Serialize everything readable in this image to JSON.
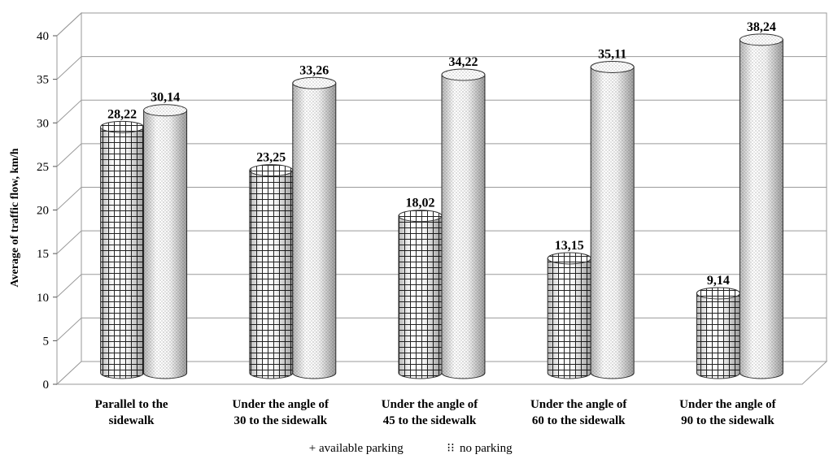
{
  "chart_data": {
    "type": "bar",
    "title": "",
    "xlabel": "",
    "ylabel": "Average of traffic flow, km/h",
    "ylim": [
      0,
      40
    ],
    "yticks": [
      0,
      5,
      10,
      15,
      20,
      25,
      30,
      35,
      40
    ],
    "grid": true,
    "legend_position": "bottom",
    "categories": [
      [
        "Parallel to the",
        "sidewalk"
      ],
      [
        "Under the angle of",
        "30 to the sidewalk"
      ],
      [
        "Under the angle of",
        "45 to the sidewalk"
      ],
      [
        "Under the angle of",
        "60 to the sidewalk"
      ],
      [
        "Under the angle of",
        "90 to the sidewalk"
      ]
    ],
    "series": [
      {
        "name": "available parking",
        "legend_marker": "+",
        "pattern": "grid",
        "values": [
          28.22,
          23.25,
          18.02,
          13.15,
          9.14
        ],
        "labels": [
          "28,22",
          "23,25",
          "18,02",
          "13,15",
          "9,14"
        ]
      },
      {
        "name": "no parking",
        "legend_marker": "⁝⁝",
        "pattern": "dots",
        "values": [
          30.14,
          33.26,
          34.22,
          35.11,
          38.24
        ],
        "labels": [
          "30,14",
          "33,26",
          "34,22",
          "35,11",
          "38,24"
        ]
      }
    ]
  }
}
